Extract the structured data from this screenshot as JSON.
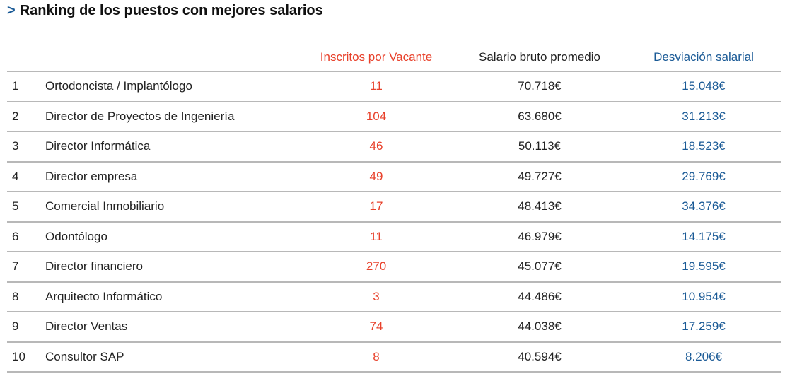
{
  "title_arrow": ">",
  "title": "Ranking de los puestos con mejores salarios",
  "headers": {
    "inscritos": "Inscritos por Vacante",
    "salario": "Salario bruto promedio",
    "desviacion": "Desviación salarial"
  },
  "colors": {
    "accent_red": "#e8412b",
    "accent_blue": "#1a5a96"
  },
  "rows": [
    {
      "rank": "1",
      "job": "Ortodoncista / Implantólogo",
      "inscritos": "11",
      "salario": "70.718€",
      "desviacion": "15.048€"
    },
    {
      "rank": "2",
      "job": "Director de Proyectos de Ingeniería",
      "inscritos": "104",
      "salario": "63.680€",
      "desviacion": "31.213€"
    },
    {
      "rank": "3",
      "job": "Director Informática",
      "inscritos": "46",
      "salario": "50.113€",
      "desviacion": "18.523€"
    },
    {
      "rank": "4",
      "job": "Director empresa",
      "inscritos": "49",
      "salario": "49.727€",
      "desviacion": "29.769€"
    },
    {
      "rank": "5",
      "job": "Comercial Inmobiliario",
      "inscritos": "17",
      "salario": "48.413€",
      "desviacion": "34.376€"
    },
    {
      "rank": "6",
      "job": "Odontólogo",
      "inscritos": "11",
      "salario": "46.979€",
      "desviacion": "14.175€"
    },
    {
      "rank": "7",
      "job": "Director financiero",
      "inscritos": "270",
      "salario": "45.077€",
      "desviacion": "19.595€"
    },
    {
      "rank": "8",
      "job": "Arquitecto Informático",
      "inscritos": "3",
      "salario": "44.486€",
      "desviacion": "10.954€"
    },
    {
      "rank": "9",
      "job": "Director Ventas",
      "inscritos": "74",
      "salario": "44.038€",
      "desviacion": "17.259€"
    },
    {
      "rank": "10",
      "job": "Consultor SAP",
      "inscritos": "8",
      "salario": "40.594€",
      "desviacion": "8.206€"
    }
  ]
}
